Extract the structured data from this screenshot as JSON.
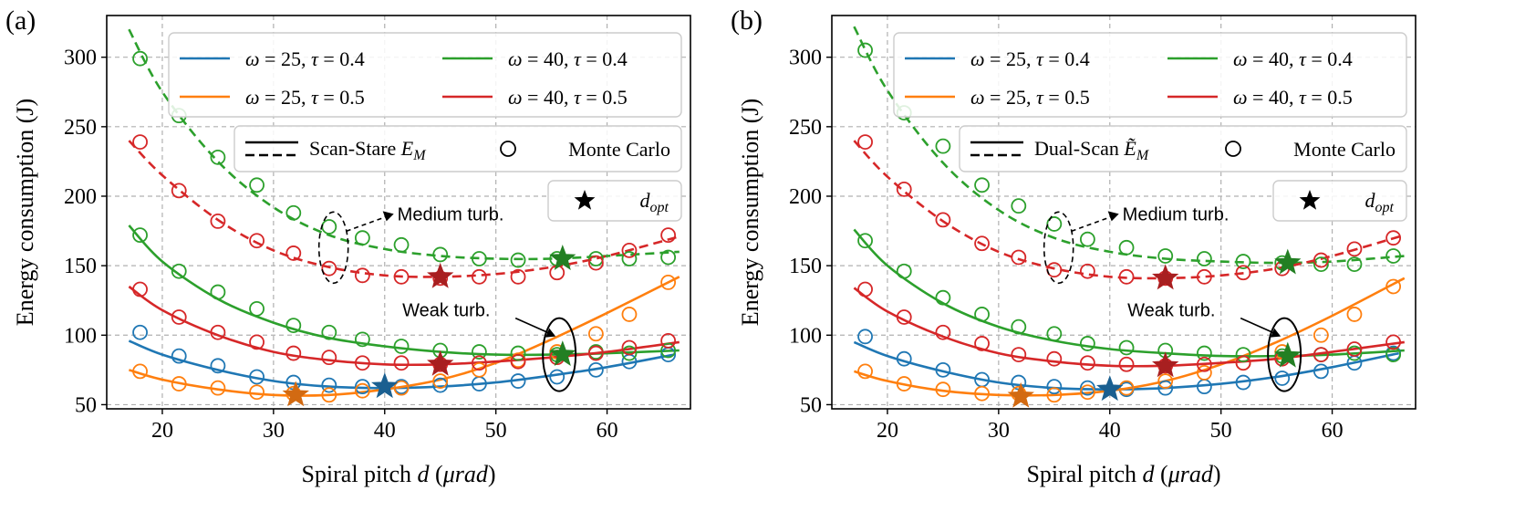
{
  "figure": {
    "panels": [
      "(a)",
      "(b)"
    ]
  },
  "chart_data": [
    {
      "panel_label": "(a)",
      "type": "line",
      "xlabel": "Spiral pitch d (μrad)",
      "ylabel": "Energy consumption (J)",
      "xlim": [
        15,
        67.5
      ],
      "ylim": [
        47,
        330
      ],
      "xticks": [
        20,
        30,
        40,
        50,
        60
      ],
      "yticks": [
        50,
        100,
        150,
        200,
        250,
        300
      ],
      "grid": true,
      "legend_location": "top-right",
      "model_legend_label": "Scan-Stare E_M",
      "monte_carlo_legend_label": "Monte Carlo",
      "optimum_legend_label": "d_opt",
      "annotations": [
        "Medium turb.",
        "Weak turb."
      ],
      "series": [
        {
          "name": "ω = 25, τ = 0.4",
          "color": "#1f77b4",
          "turbulence": "weak",
          "line_style": "solid",
          "curve": [
            [
              17,
              96
            ],
            [
              20,
              86
            ],
            [
              25,
              75
            ],
            [
              30,
              67
            ],
            [
              35,
              63
            ],
            [
              40,
              62
            ],
            [
              45,
              63
            ],
            [
              50,
              66
            ],
            [
              55,
              71
            ],
            [
              60,
              77
            ],
            [
              66,
              86
            ]
          ],
          "mc_x": [
            18,
            21.5,
            25,
            28.5,
            31.8,
            35,
            38,
            41.5,
            45,
            48.5,
            52,
            55.5,
            59,
            62,
            65.5
          ],
          "mc_y": [
            102,
            85,
            78,
            70,
            66,
            64,
            63,
            63,
            64,
            65,
            67,
            70,
            75,
            81,
            86
          ],
          "optimum": [
            40,
            63
          ]
        },
        {
          "name": "ω = 25, τ = 0.5",
          "color": "#ff7f0e",
          "turbulence": "weak",
          "line_style": "solid",
          "curve": [
            [
              17,
              75
            ],
            [
              20,
              68
            ],
            [
              25,
              61
            ],
            [
              30,
              57
            ],
            [
              35,
              57
            ],
            [
              40,
              61
            ],
            [
              45,
              68
            ],
            [
              50,
              80
            ],
            [
              55,
              97
            ],
            [
              60,
              116
            ],
            [
              66.5,
              142
            ]
          ],
          "mc_x": [
            18,
            21.5,
            25,
            28.5,
            31.8,
            35,
            38,
            41.5,
            45,
            48.5,
            52,
            55.5,
            59,
            62,
            65.5
          ],
          "mc_y": [
            74,
            65,
            62,
            59,
            58,
            57,
            60,
            62,
            67,
            75,
            82,
            88,
            101,
            115,
            138
          ],
          "optimum": [
            32,
            57
          ]
        },
        {
          "name": "ω = 40, τ = 0.4",
          "color": "#2ca02c",
          "turbulence": "weak",
          "line_style": "solid",
          "curve": [
            [
              17,
              179
            ],
            [
              20,
              153
            ],
            [
              25,
              126
            ],
            [
              30,
              109
            ],
            [
              35,
              98
            ],
            [
              40,
              92
            ],
            [
              45,
              88
            ],
            [
              50,
              86
            ],
            [
              55,
              86
            ],
            [
              60,
              87
            ],
            [
              66.5,
              89
            ]
          ],
          "mc_x": [
            18,
            21.5,
            25,
            28.5,
            31.8,
            35,
            38,
            41.5,
            45,
            48.5,
            52,
            55.5,
            59,
            62,
            65.5
          ],
          "mc_y": [
            172,
            146,
            131,
            119,
            107,
            102,
            97,
            92,
            89,
            88,
            87,
            86,
            88,
            87,
            89
          ],
          "optimum": [
            56,
            86
          ]
        },
        {
          "name": "ω = 40, τ = 0.5",
          "color": "#d62728",
          "turbulence": "weak",
          "line_style": "solid",
          "curve": [
            [
              17,
              135
            ],
            [
              20,
              118
            ],
            [
              25,
              100
            ],
            [
              30,
              88
            ],
            [
              35,
              82
            ],
            [
              40,
              79
            ],
            [
              45,
              79
            ],
            [
              50,
              81
            ],
            [
              55,
              84
            ],
            [
              60,
              88
            ],
            [
              66.5,
              95
            ]
          ],
          "mc_x": [
            18,
            21.5,
            25,
            28.5,
            31.8,
            35,
            38,
            41.5,
            45,
            48.5,
            52,
            55.5,
            59,
            62,
            65.5
          ],
          "mc_y": [
            133,
            113,
            102,
            95,
            87,
            84,
            80,
            80,
            79,
            80,
            81,
            84,
            87,
            91,
            96
          ],
          "optimum": [
            45,
            79
          ]
        },
        {
          "name": "ω = 40, τ = 0.4 (medium)",
          "color": "#2ca02c",
          "turbulence": "medium",
          "line_style": "dashed",
          "curve": [
            [
              17,
              320
            ],
            [
              20,
              275
            ],
            [
              25,
              225
            ],
            [
              30,
              192
            ],
            [
              35,
              172
            ],
            [
              40,
              162
            ],
            [
              45,
              157
            ],
            [
              50,
              155
            ],
            [
              55,
              155
            ],
            [
              60,
              157
            ],
            [
              66.5,
              160
            ]
          ],
          "mc_x": [
            18,
            21.5,
            25,
            28.5,
            31.8,
            35,
            38,
            41.5,
            45,
            48.5,
            52,
            55.5,
            59,
            62,
            65.5
          ],
          "mc_y": [
            299,
            258,
            228,
            208,
            188,
            178,
            170,
            165,
            158,
            155,
            154,
            155,
            155,
            155,
            156
          ],
          "optimum": [
            56,
            155
          ]
        },
        {
          "name": "ω = 40, τ = 0.5 (medium)",
          "color": "#d62728",
          "turbulence": "medium",
          "line_style": "dashed",
          "curve": [
            [
              17,
              240
            ],
            [
              20,
              215
            ],
            [
              25,
              183
            ],
            [
              30,
              161
            ],
            [
              35,
              149
            ],
            [
              40,
              143
            ],
            [
              45,
              142
            ],
            [
              50,
              144
            ],
            [
              55,
              149
            ],
            [
              60,
              157
            ],
            [
              66.5,
              171
            ]
          ],
          "mc_x": [
            18,
            21.5,
            25,
            28.5,
            31.8,
            35,
            38,
            41.5,
            45,
            48.5,
            52,
            55.5,
            59,
            62,
            65.5
          ],
          "mc_y": [
            239,
            204,
            182,
            168,
            159,
            148,
            143,
            142,
            141,
            142,
            142,
            145,
            152,
            161,
            172
          ],
          "optimum": [
            45,
            142
          ]
        }
      ]
    },
    {
      "panel_label": "(b)",
      "type": "line",
      "xlabel": "Spiral pitch d (μrad)",
      "ylabel": "Energy consumption (J)",
      "xlim": [
        15,
        67.5
      ],
      "ylim": [
        47,
        330
      ],
      "xticks": [
        20,
        30,
        40,
        50,
        60
      ],
      "yticks": [
        50,
        100,
        150,
        200,
        250,
        300
      ],
      "grid": true,
      "legend_location": "top-right",
      "model_legend_label": "Dual-Scan Ẽ_M",
      "monte_carlo_legend_label": "Monte Carlo",
      "optimum_legend_label": "d_opt",
      "annotations": [
        "Medium turb.",
        "Weak turb."
      ],
      "series": [
        {
          "name": "ω = 25, τ = 0.4",
          "color": "#1f77b4",
          "turbulence": "weak",
          "line_style": "solid",
          "curve": [
            [
              17,
              95
            ],
            [
              20,
              85
            ],
            [
              25,
              74
            ],
            [
              30,
              66
            ],
            [
              35,
              62
            ],
            [
              40,
              61
            ],
            [
              45,
              62
            ],
            [
              50,
              65
            ],
            [
              55,
              70
            ],
            [
              60,
              77
            ],
            [
              66,
              87
            ]
          ],
          "mc_x": [
            18,
            21.5,
            25,
            28.5,
            31.8,
            35,
            38,
            41.5,
            45,
            48.5,
            52,
            55.5,
            59,
            62,
            65.5
          ],
          "mc_y": [
            99,
            83,
            75,
            68,
            66,
            63,
            62,
            61,
            62,
            63,
            66,
            69,
            74,
            80,
            87
          ],
          "optimum": [
            40,
            61
          ]
        },
        {
          "name": "ω = 25, τ = 0.5",
          "color": "#ff7f0e",
          "turbulence": "weak",
          "line_style": "solid",
          "curve": [
            [
              17,
              74
            ],
            [
              20,
              67
            ],
            [
              25,
              60
            ],
            [
              30,
              57
            ],
            [
              35,
              57
            ],
            [
              40,
              60
            ],
            [
              45,
              67
            ],
            [
              50,
              79
            ],
            [
              55,
              95
            ],
            [
              60,
              114
            ],
            [
              66.5,
              141
            ]
          ],
          "mc_x": [
            18,
            21.5,
            25,
            28.5,
            31.8,
            35,
            38,
            41.5,
            45,
            48.5,
            52,
            55.5,
            59,
            62,
            65.5
          ],
          "mc_y": [
            74,
            65,
            61,
            58,
            58,
            57,
            59,
            62,
            67,
            73,
            80,
            88,
            100,
            115,
            135
          ],
          "optimum": [
            32,
            56
          ]
        },
        {
          "name": "ω = 40, τ = 0.4",
          "color": "#2ca02c",
          "turbulence": "weak",
          "line_style": "solid",
          "curve": [
            [
              17,
              176
            ],
            [
              20,
              150
            ],
            [
              25,
              123
            ],
            [
              30,
              106
            ],
            [
              35,
              96
            ],
            [
              40,
              90
            ],
            [
              45,
              87
            ],
            [
              50,
              85
            ],
            [
              55,
              85
            ],
            [
              60,
              86
            ],
            [
              66.5,
              89
            ]
          ],
          "mc_x": [
            18,
            21.5,
            25,
            28.5,
            31.8,
            35,
            38,
            41.5,
            45,
            48.5,
            52,
            55.5,
            59,
            62,
            65.5
          ],
          "mc_y": [
            168,
            146,
            127,
            115,
            106,
            101,
            94,
            91,
            89,
            87,
            86,
            85,
            86,
            87,
            86
          ],
          "optimum": [
            56,
            85
          ]
        },
        {
          "name": "ω = 40, τ = 0.5",
          "color": "#d62728",
          "turbulence": "weak",
          "line_style": "solid",
          "curve": [
            [
              17,
              134
            ],
            [
              20,
              117
            ],
            [
              25,
              99
            ],
            [
              30,
              87
            ],
            [
              35,
              81
            ],
            [
              40,
              78
            ],
            [
              45,
              78
            ],
            [
              50,
              80
            ],
            [
              55,
              83
            ],
            [
              60,
              88
            ],
            [
              66.5,
              95
            ]
          ],
          "mc_x": [
            18,
            21.5,
            25,
            28.5,
            31.8,
            35,
            38,
            41.5,
            45,
            48.5,
            52,
            55.5,
            59,
            62,
            65.5
          ],
          "mc_y": [
            133,
            113,
            102,
            94,
            86,
            83,
            80,
            79,
            78,
            79,
            80,
            83,
            86,
            90,
            95
          ],
          "optimum": [
            45,
            78
          ]
        },
        {
          "name": "ω = 40, τ = 0.4 (medium)",
          "color": "#2ca02c",
          "turbulence": "medium",
          "line_style": "dashed",
          "curve": [
            [
              17,
              322
            ],
            [
              20,
              276
            ],
            [
              25,
              224
            ],
            [
              30,
              190
            ],
            [
              35,
              170
            ],
            [
              40,
              160
            ],
            [
              45,
              155
            ],
            [
              50,
              153
            ],
            [
              55,
              152
            ],
            [
              60,
              153
            ],
            [
              66.5,
              157
            ]
          ],
          "mc_x": [
            18,
            21.5,
            25,
            28.5,
            31.8,
            35,
            38,
            41.5,
            45,
            48.5,
            52,
            55.5,
            59,
            62,
            65.5
          ],
          "mc_y": [
            305,
            260,
            236,
            208,
            193,
            180,
            169,
            163,
            157,
            155,
            153,
            152,
            151,
            151,
            157
          ],
          "optimum": [
            56,
            152
          ]
        },
        {
          "name": "ω = 40, τ = 0.5 (medium)",
          "color": "#d62728",
          "turbulence": "medium",
          "line_style": "dashed",
          "curve": [
            [
              17,
              240
            ],
            [
              20,
              214
            ],
            [
              25,
              182
            ],
            [
              30,
              160
            ],
            [
              35,
              148
            ],
            [
              40,
              142
            ],
            [
              45,
              141
            ],
            [
              50,
              143
            ],
            [
              55,
              148
            ],
            [
              60,
              157
            ],
            [
              66.5,
              172
            ]
          ],
          "mc_x": [
            18,
            21.5,
            25,
            28.5,
            31.8,
            35,
            38,
            41.5,
            45,
            48.5,
            52,
            55.5,
            59,
            62,
            65.5
          ],
          "mc_y": [
            239,
            205,
            183,
            166,
            156,
            147,
            146,
            142,
            141,
            142,
            145,
            148,
            154,
            162,
            170
          ],
          "optimum": [
            45,
            141
          ]
        }
      ]
    }
  ]
}
